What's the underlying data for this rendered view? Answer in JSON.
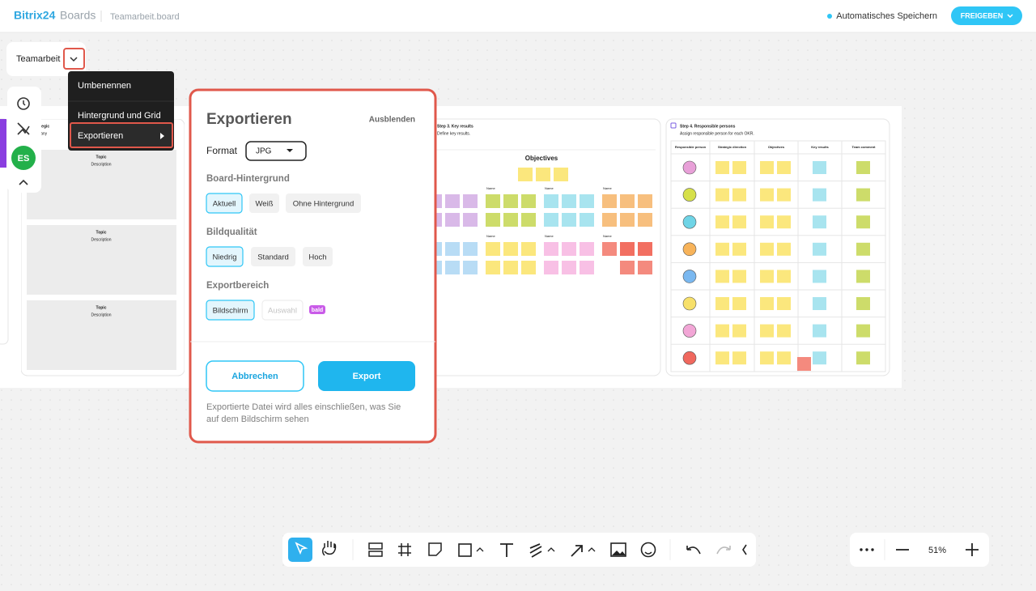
{
  "header": {
    "brand": "Bitrix24",
    "product": "Boards",
    "file": "Teamarbeit.board",
    "autosave": "Automatisches Speichern",
    "share": "FREIGEBEN"
  },
  "board_menu": {
    "name": "Teamarbeit",
    "items": [
      "Umbenennen",
      "Hintergrund und Grid",
      "Exportieren"
    ]
  },
  "user": "ES",
  "board": {
    "step1": {
      "title": "Step 1. Strategic",
      "subtitle": "Define company",
      "cards": [
        {
          "title": "Topic",
          "text": "Description"
        },
        {
          "title": "Topic",
          "text": "Description"
        },
        {
          "title": "Topic",
          "text": "Description"
        }
      ]
    },
    "step3": {
      "title": "Step 3. Key results",
      "subtitle": "Define key results.",
      "heading": "Objectives",
      "labels": [
        "Name",
        "Name",
        "Name",
        "Name",
        "Name",
        "Name",
        "Name",
        "Name"
      ]
    },
    "step4": {
      "title": "Step 4. Responsible persons",
      "subtitle": "Assign responsible person for each OKR.",
      "columns": [
        "Responsible person",
        "Strategic direction",
        "Objectives",
        "Key results",
        "Team comment"
      ]
    }
  },
  "export_dialog": {
    "title": "Exportieren",
    "hide": "Ausblenden",
    "format_label": "Format",
    "format": "JPG",
    "background": {
      "label": "Board-Hintergrund",
      "options": [
        "Aktuell",
        "Weiß",
        "Ohne Hintergrund"
      ]
    },
    "quality": {
      "label": "Bildqualität",
      "options": [
        "Niedrig",
        "Standard",
        "Hoch"
      ]
    },
    "area": {
      "label": "Exportbereich",
      "options": [
        "Bildschirm",
        "Auswahl"
      ],
      "badge": "bald"
    },
    "cancel": "Abbrechen",
    "export": "Export",
    "note": [
      "Exportierte Datei wird alles einschließen, was Sie",
      "auf dem Bildschirm sehen"
    ]
  },
  "zoom": "51%"
}
